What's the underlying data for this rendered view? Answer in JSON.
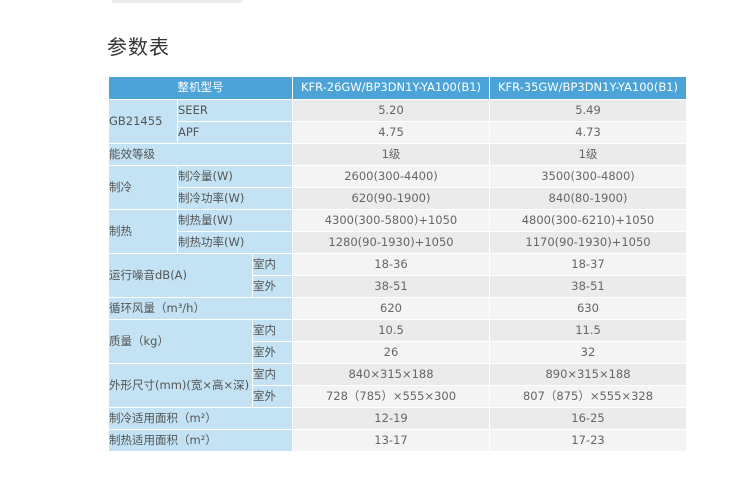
{
  "page": {
    "section_title": "参数表"
  },
  "table": {
    "header": {
      "model_label": "整机型号",
      "model_1": "KFR-26GW/BP3DN1Y-YA100(B1)",
      "model_2": "KFR-35GW/BP3DN1Y-YA100(B1)"
    },
    "gb": {
      "label": "GB21455",
      "seer": {
        "label": "SEER",
        "v1": "5.20",
        "v2": "5.49"
      },
      "apf": {
        "label": "APF",
        "v1": "4.75",
        "v2": "4.73"
      }
    },
    "energy": {
      "label": "能效等级",
      "v1": "1级",
      "v2": "1级"
    },
    "cooling": {
      "label": "制冷",
      "capacity": {
        "label": "制冷量(W)",
        "v1": "2600(300-4400)",
        "v2": "3500(300-4800)"
      },
      "power": {
        "label": "制冷功率(W)",
        "v1": "620(90-1900)",
        "v2": "840(80-1900)"
      }
    },
    "heating": {
      "label": "制热",
      "capacity": {
        "label": "制热量(W)",
        "v1": "4300(300-5800)+1050",
        "v2": "4800(300-6210)+1050"
      },
      "power": {
        "label": "制热功率(W)",
        "v1": "1280(90-1930)+1050",
        "v2": "1170(90-1930)+1050"
      }
    },
    "noise": {
      "label": "运行噪音dB(A)",
      "indoor": {
        "label": "室内",
        "v1": "18-36",
        "v2": "18-37"
      },
      "outdoor": {
        "label": "室外",
        "v1": "38-51",
        "v2": "38-51"
      }
    },
    "airflow": {
      "label": "循环风量（m³/h）",
      "v1": "620",
      "v2": "630"
    },
    "mass": {
      "label": "质量（kg）",
      "indoor": {
        "label": "室内",
        "v1": "10.5",
        "v2": "11.5"
      },
      "outdoor": {
        "label": "室外",
        "v1": "26",
        "v2": "32"
      }
    },
    "dimensions": {
      "label": "外形尺寸(mm)(宽×高×深)",
      "indoor": {
        "label": "室内",
        "v1": "840×315×188",
        "v2": "890×315×188"
      },
      "outdoor": {
        "label": "室外",
        "v1": "728（785）×555×300",
        "v2": "807（875）×555×328"
      }
    },
    "cool_area": {
      "label": "制冷适用面积（m²）",
      "v1": "12-19",
      "v2": "16-25"
    },
    "heat_area": {
      "label": "制热适用面积（m²）",
      "v1": "13-17",
      "v2": "17-23"
    }
  },
  "colors": {
    "header_bg": "#4ba3d8",
    "label_bg": "#c3e2f3",
    "value_bg": "#ebebeb"
  }
}
